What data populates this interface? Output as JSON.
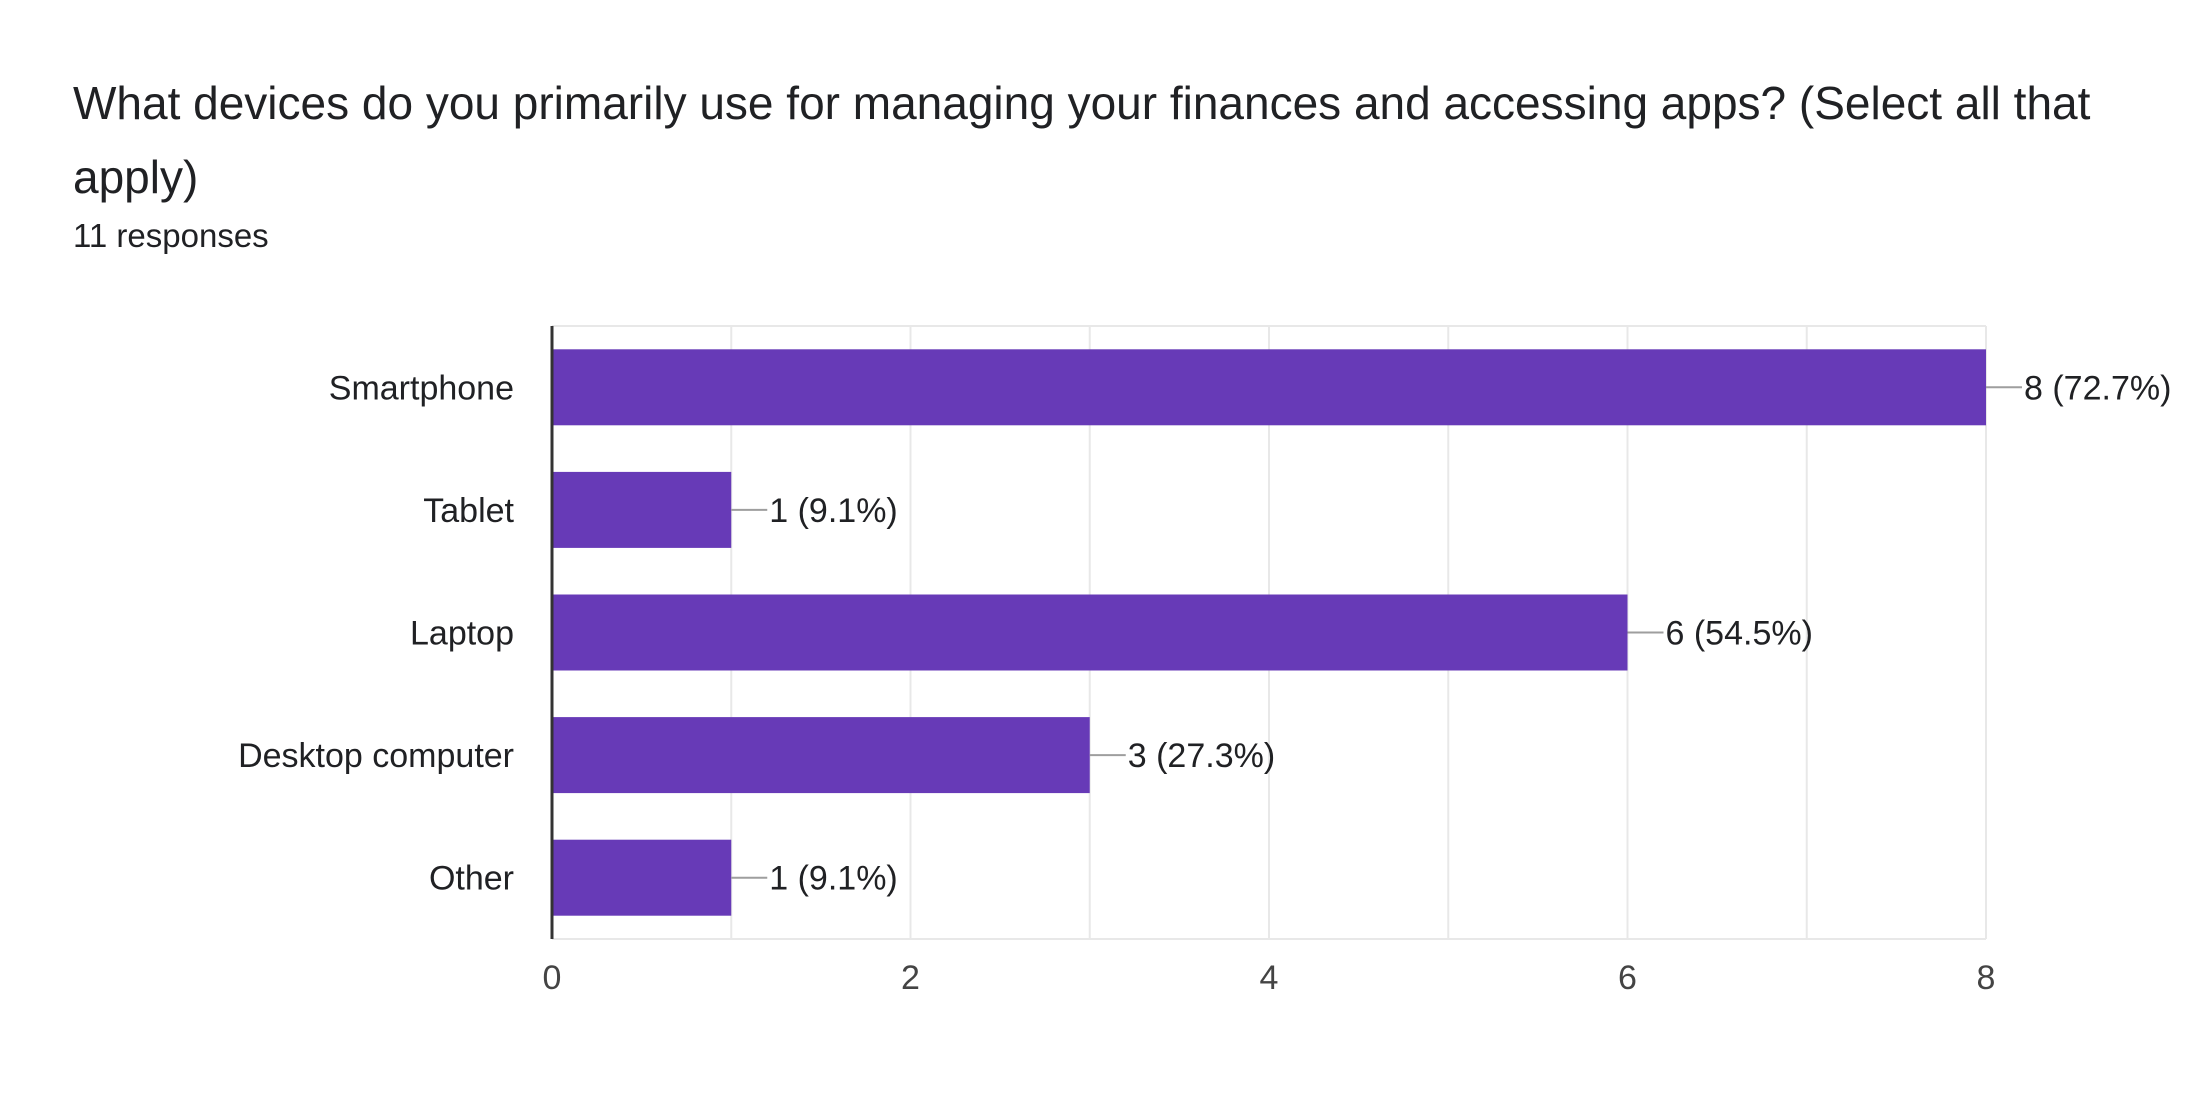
{
  "question": {
    "title": "What devices do you primarily use for managing your finances and accessing apps? (Select all that apply)",
    "response_count": "11 responses"
  },
  "colors": {
    "bar": "#673ab7",
    "grid": "#e8e8e8",
    "axis": "#333333",
    "leader": "#9e9e9e",
    "text": "#202124",
    "tick_text": "#444444"
  },
  "chart_data": {
    "type": "bar",
    "orientation": "horizontal",
    "categories": [
      "Smartphone",
      "Tablet",
      "Laptop",
      "Desktop computer",
      "Other"
    ],
    "values": [
      8,
      1,
      6,
      3,
      1
    ],
    "data_labels": [
      "8 (72.7%)",
      "1 (9.1%)",
      "6 (54.5%)",
      "3 (27.3%)",
      "1 (9.1%)"
    ],
    "xlim": [
      0,
      8
    ],
    "xticks": [
      "0",
      "2",
      "4",
      "6",
      "8"
    ],
    "gridline_step": 1,
    "grid": true,
    "legend": "none"
  }
}
